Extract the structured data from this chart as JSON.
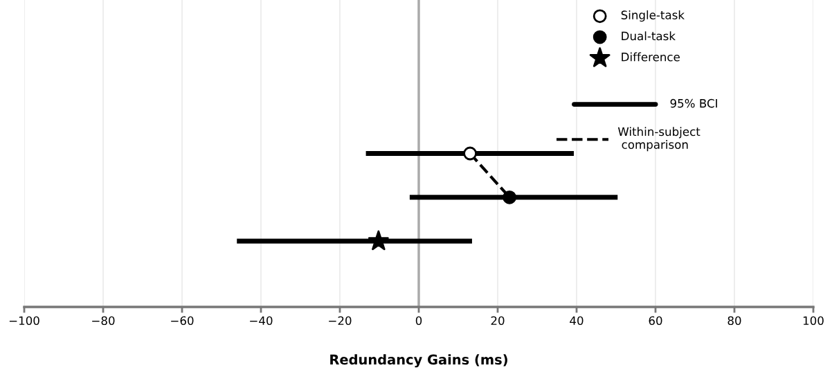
{
  "chart_data": {
    "type": "scatter",
    "orientation": "horizontal",
    "xlabel": "Redundancy Gains (ms)",
    "categories": [
      null,
      null,
      null,
      null,
      null,
      null,
      null
    ],
    "xlim": [
      -100,
      100
    ],
    "xticks": [
      -100,
      -80,
      -60,
      -40,
      -20,
      0,
      20,
      40,
      60,
      80,
      100
    ],
    "grid": "x",
    "legend": "top right",
    "ref_lines": [
      {
        "axis": "x",
        "value": 0,
        "color": "#aaaaaa"
      }
    ],
    "annotations": [
      "95% BCI"
    ],
    "series": [
      {
        "name": "Single-task",
        "color": "#ffffff",
        "marker": "circle",
        "values": [
          null,
          null,
          null,
          13.0,
          null,
          null,
          null
        ],
        "errors": [
          null,
          null,
          null,
          [
            -13.4,
            39.3
          ],
          null,
          null,
          null
        ]
      },
      {
        "name": "Dual-task",
        "color": "#000000",
        "marker": "circle",
        "values": [
          null,
          null,
          null,
          null,
          23.0,
          null,
          null
        ],
        "errors": [
          null,
          null,
          null,
          null,
          [
            -2.3,
            50.4
          ],
          null,
          null
        ]
      },
      {
        "name": "Difference",
        "color": "#000000",
        "marker": "star",
        "values": [
          null,
          null,
          null,
          null,
          null,
          -10.2,
          null
        ],
        "errors": [
          null,
          null,
          null,
          null,
          null,
          [
            -46.1,
            13.5
          ],
          null
        ]
      },
      {
        "name": "Within-subject comparison",
        "type": "line",
        "color": "#000000",
        "line_style": "dashed",
        "marker": "none",
        "values": [
          null,
          null,
          null,
          13.0,
          23.0,
          null,
          null
        ]
      }
    ]
  }
}
